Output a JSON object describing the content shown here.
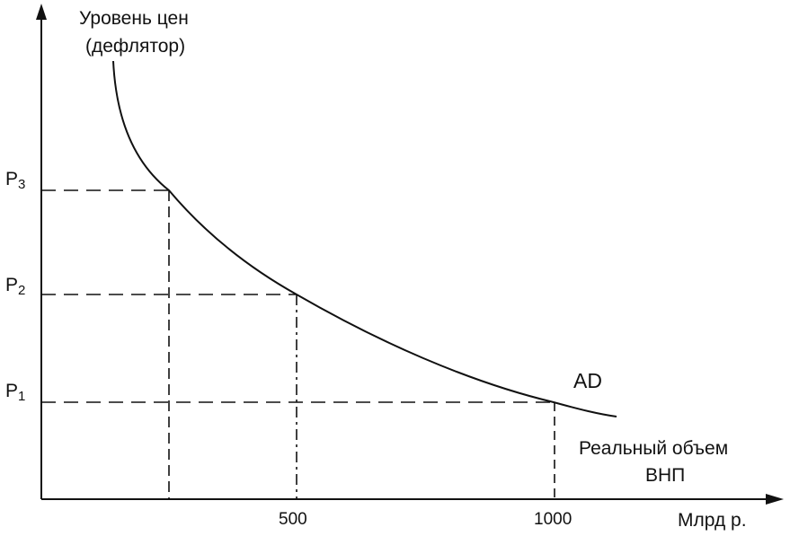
{
  "chart_data": {
    "type": "line",
    "series": [
      {
        "name": "AD"
      }
    ],
    "ylabel": [
      "Уровень цен",
      "(дефлятор)"
    ],
    "xlabel": [
      "Реальный объем",
      "ВНП"
    ],
    "xunit": "Млрд р.",
    "x_ticks": [
      "500",
      "1000"
    ],
    "y_levels": [
      {
        "base": "P",
        "sub": "3"
      },
      {
        "base": "P",
        "sub": "2"
      },
      {
        "base": "P",
        "sub": "1"
      }
    ],
    "grid": false,
    "colors": {
      "line": "#111111",
      "background": "#ffffff"
    }
  }
}
